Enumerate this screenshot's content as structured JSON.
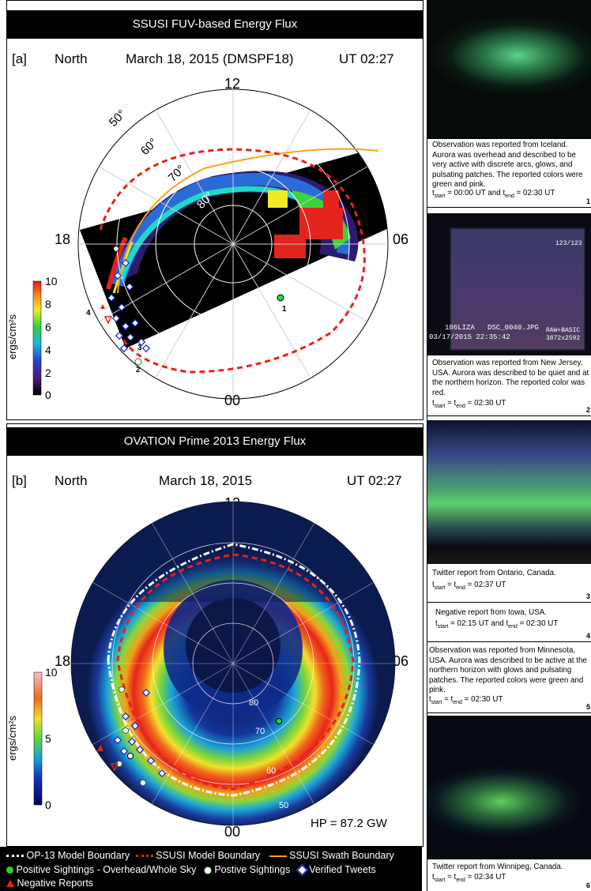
{
  "panel_a": {
    "title": "SSUSI FUV-based Energy Flux",
    "tag": "[a]",
    "hemisphere": "North",
    "date": "March 18, 2015 (DMSPF18)",
    "time": "UT 02:27",
    "clock": {
      "top": "12",
      "left": "18",
      "right": "06",
      "bottom": "00"
    },
    "lat_labels": [
      "50°",
      "60°",
      "70°",
      "80°"
    ],
    "colorbar": {
      "label": "ergs/cm²s",
      "ticks": [
        "10",
        "8",
        "6",
        "4",
        "2",
        "0"
      ],
      "range": [
        0,
        10
      ]
    },
    "markers": [
      "1",
      "2",
      "3",
      "4"
    ]
  },
  "panel_b": {
    "title": "OVATION Prime 2013 Energy Flux",
    "tag": "[b]",
    "hemisphere": "North",
    "date": "March 18, 2015",
    "time": "UT 02:27",
    "clock": {
      "top": "12",
      "left": "18",
      "right": "06",
      "bottom": "00"
    },
    "lat_labels": [
      "80",
      "70",
      "60",
      "50"
    ],
    "colorbar": {
      "label": "ergs/cm²s",
      "ticks": [
        "10",
        "5",
        "0"
      ],
      "range": [
        0,
        10
      ]
    },
    "hp": "HP = 87.2 GW"
  },
  "legend": {
    "row1": [
      "OP-13 Model Boundary",
      "SSUSI Model Boundary",
      "SSUSI Swath Boundary"
    ],
    "row2": [
      "Positive Sightings - Overhead/Whole Sky",
      "Postive Sightings",
      "Verified Tweets"
    ],
    "row3": [
      "Negative Reports"
    ]
  },
  "reports": [
    {
      "id": "1",
      "caption": "Observation was reported from Iceland. Aurora was overhead and described to be very active with discrete arcs, glows, and pulsating patches. The reported colors were green and pink.",
      "time": "= 00:00 UT and t",
      "time_b": "= 02:30 UT"
    },
    {
      "id": "2",
      "caption": "Observation was reported from New Jersey, USA. Aurora was described to be quiet and at the northern horizon. The reported color was red.",
      "time": "= 02:30 UT",
      "stamp1": "123/123",
      "stamp2": "106LIZA   DSC_0040.JPG",
      "stamp3": "03/17/2015 22:35:42",
      "stamp4": "RAW+BASIC",
      "stamp5": "3872x2592"
    },
    {
      "id": "3",
      "caption": "Twitter report from Ontario, Canada.",
      "time": "= 02:37 UT"
    },
    {
      "id": "4",
      "caption": "Negative report from Iowa, USA.",
      "time": "= 02:15 UT and t",
      "time_b": "= 02:30 UT"
    },
    {
      "id": "5",
      "caption": "Observation was reported from Minnesota, USA. Aurora was described to be active at the northern horizon with glows and pulsating patches. The reported colors were green and pink.",
      "time": "= 02:30 UT"
    },
    {
      "id": "6",
      "caption": "Twitter report from Winnipeg, Canada.",
      "time": "= 02:34 UT"
    }
  ],
  "colors": {
    "red_boundary": "#e8201c",
    "orange_boundary": "#f4a21b",
    "green": "#2bd62b",
    "blue": "#1a2bd8"
  }
}
